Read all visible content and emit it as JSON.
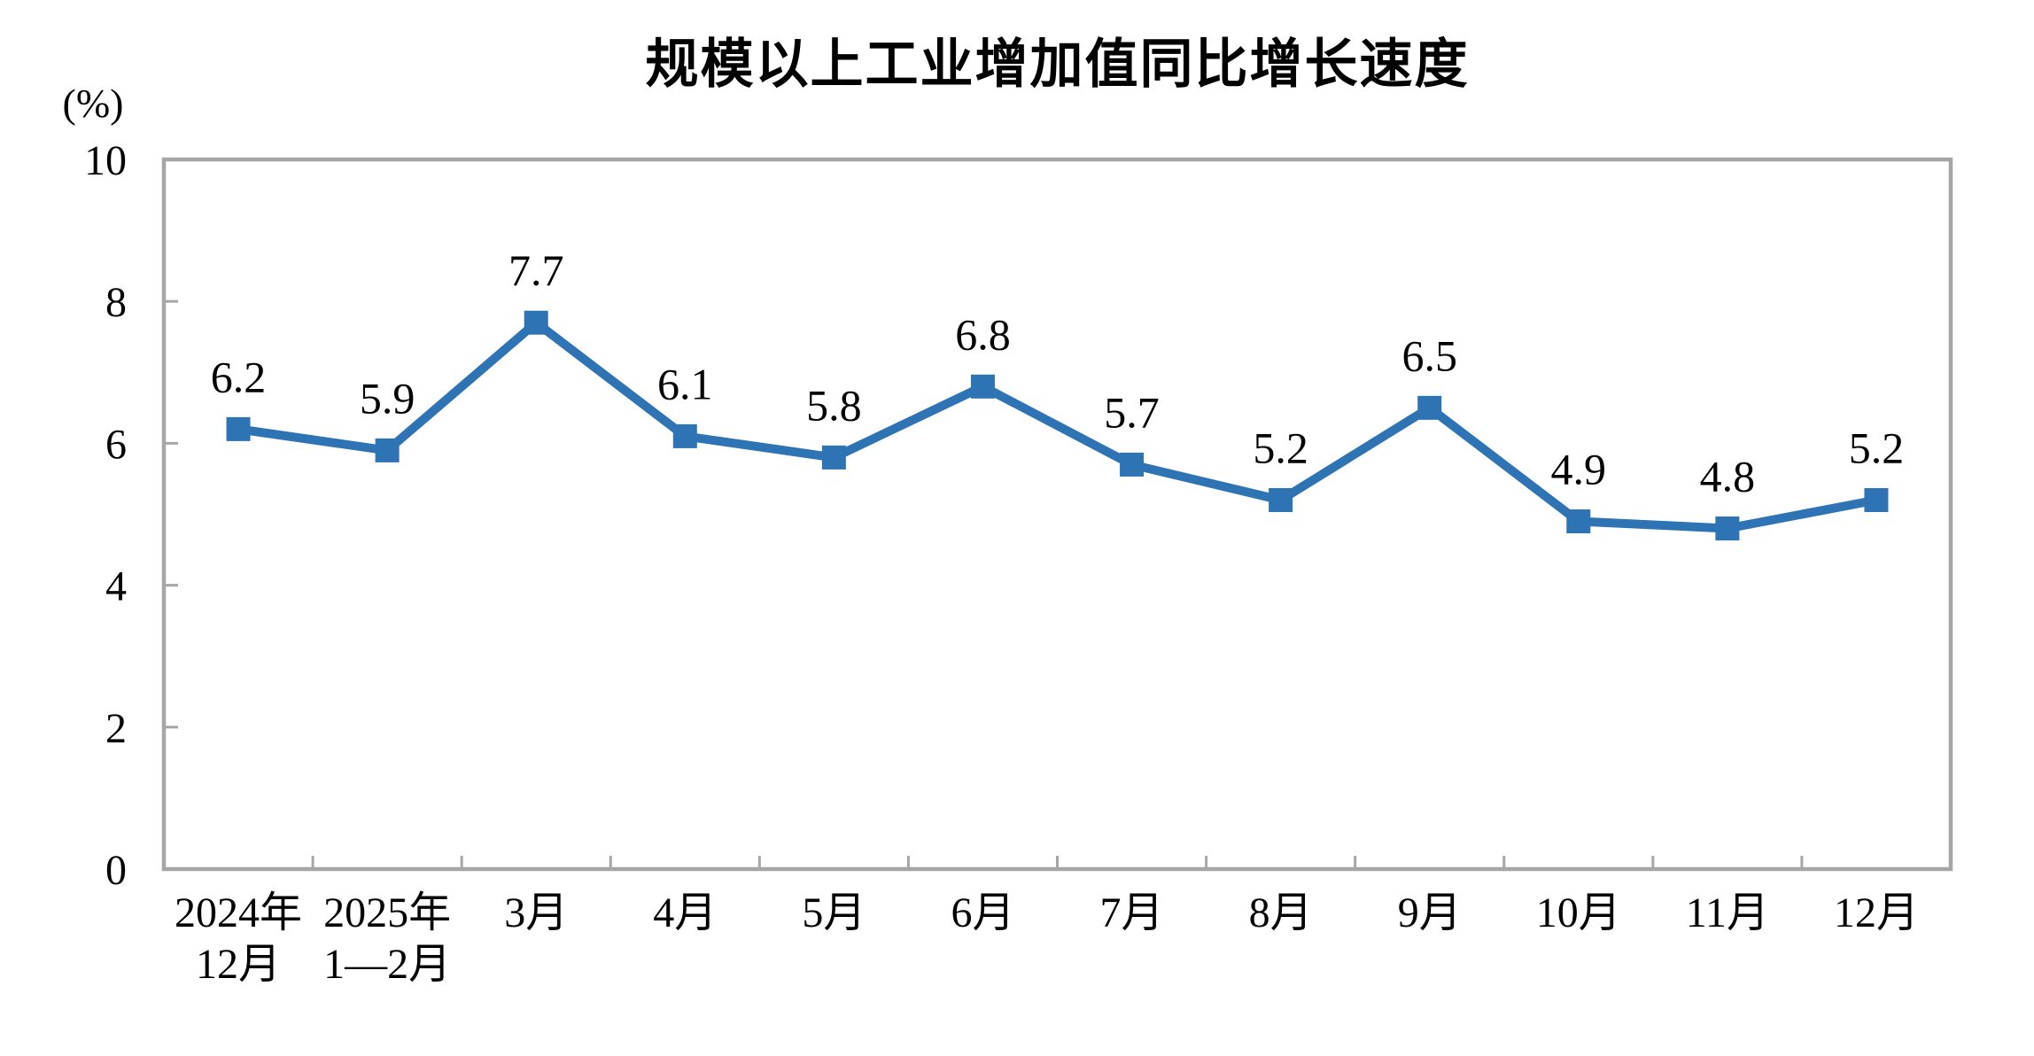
{
  "chart_data": {
    "type": "line",
    "title": "规模以上工业增加值同比增长速度",
    "unit_label": "(%)",
    "categories": [
      [
        "2024年",
        "12月"
      ],
      [
        "2025年",
        "1—2月"
      ],
      [
        "3月"
      ],
      [
        "4月"
      ],
      [
        "5月"
      ],
      [
        "6月"
      ],
      [
        "7月"
      ],
      [
        "8月"
      ],
      [
        "9月"
      ],
      [
        "10月"
      ],
      [
        "11月"
      ],
      [
        "12月"
      ]
    ],
    "series": [
      {
        "name": "规模以上工业增加值同比增长速度",
        "values": [
          6.2,
          5.9,
          7.7,
          6.1,
          5.8,
          6.8,
          5.7,
          5.2,
          6.5,
          4.9,
          4.8,
          5.2
        ]
      }
    ],
    "data_labels": [
      "6.2",
      "5.9",
      "7.7",
      "6.1",
      "5.8",
      "6.8",
      "5.7",
      "5.2",
      "6.5",
      "4.9",
      "4.8",
      "5.2"
    ],
    "ylim": [
      0,
      10
    ],
    "yticks": [
      0,
      2,
      4,
      6,
      8,
      10
    ],
    "grid": false,
    "legend_position": "none",
    "marker_shape": "square",
    "line_color": "#2E74B5",
    "marker_color": "#2E74B5",
    "axis_color": "#A6A6A6",
    "text_color": "#000000"
  }
}
